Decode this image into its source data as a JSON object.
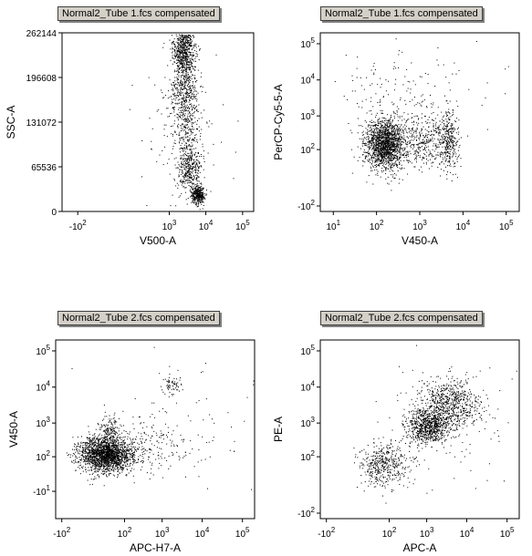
{
  "chart_data": [
    {
      "type": "scatter",
      "title": "Normal2_Tube 1.fcs compensated",
      "xlabel": "V500-A",
      "ylabel": "SSC-A",
      "x_scale": "biexponential",
      "y_scale": "linear",
      "xlim": [
        -300,
        200000
      ],
      "ylim": [
        0,
        262144
      ],
      "x_ticks": [
        "-10^2",
        "10^3",
        "10^4",
        "10^5"
      ],
      "y_ticks": [
        "0",
        "65536",
        "131072",
        "196608",
        "262144"
      ],
      "clusters": [
        {
          "x_center": 2500,
          "y_center": 240000,
          "x_spread": 0.12,
          "y_spread": 20000,
          "count": 700
        },
        {
          "x_center": 2500,
          "y_center": 175000,
          "x_spread": 0.14,
          "y_spread": 25000,
          "count": 400
        },
        {
          "x_center": 3500,
          "y_center": 110000,
          "x_spread": 0.14,
          "y_spread": 30000,
          "count": 250
        },
        {
          "x_center": 3500,
          "y_center": 60000,
          "x_spread": 0.12,
          "y_spread": 15000,
          "count": 300
        },
        {
          "x_center": 6000,
          "y_center": 25000,
          "x_spread": 0.07,
          "y_spread": 7000,
          "count": 350
        },
        {
          "x_center": 2000,
          "y_center": 130000,
          "x_spread": 0.35,
          "y_spread": 60000,
          "count": 150
        }
      ]
    },
    {
      "type": "scatter",
      "title": "Normal2_Tube 1.fcs compensated",
      "xlabel": "V450-A",
      "ylabel": "PerCP-Cy5-5-A",
      "x_scale": "log",
      "y_scale": "biexponential",
      "xlim": [
        5,
        200000
      ],
      "ylim": [
        -150,
        200000
      ],
      "x_ticks": [
        "10^1",
        "10^2",
        "10^3",
        "10^4",
        "10^5"
      ],
      "y_ticks": [
        "-10^2",
        "10^2",
        "10^3",
        "10^4",
        "10^5"
      ],
      "clusters": [
        {
          "x_center": 150,
          "y_center": 150,
          "x_spread": 0.2,
          "y_spread": 0.28,
          "count": 1600
        },
        {
          "x_center": 1200,
          "y_center": 200,
          "x_spread": 0.3,
          "y_spread": 0.3,
          "count": 400
        },
        {
          "x_center": 4500,
          "y_center": 200,
          "x_spread": 0.1,
          "y_spread": 0.35,
          "count": 300
        },
        {
          "x_center": 200,
          "y_center": 3000,
          "x_spread": 0.5,
          "y_spread": 0.5,
          "count": 120
        },
        {
          "x_center": 3000,
          "y_center": 5000,
          "x_spread": 0.6,
          "y_spread": 0.6,
          "count": 50
        }
      ]
    },
    {
      "type": "scatter",
      "title": "Normal2_Tube 2.fcs compensated",
      "xlabel": "APC-H7-A",
      "ylabel": "V450-A",
      "x_scale": "biexponential",
      "y_scale": "biexponential",
      "xlim": [
        -150,
        200000
      ],
      "ylim": [
        -150,
        200000
      ],
      "x_ticks": [
        "-10^2",
        "10^2",
        "10^3",
        "10^4",
        "10^5"
      ],
      "y_ticks": [
        "-10^1",
        "10^2",
        "10^3",
        "10^4",
        "10^5"
      ],
      "clusters": [
        {
          "x_center": 20,
          "y_center": 120,
          "x_spread": 0.26,
          "y_spread": 0.2,
          "count": 2000
        },
        {
          "x_center": 30,
          "y_center": 700,
          "x_spread": 0.1,
          "y_spread": 0.15,
          "count": 120
        },
        {
          "x_center": 300,
          "y_center": 200,
          "x_spread": 0.5,
          "y_spread": 0.3,
          "count": 250
        },
        {
          "x_center": 1800,
          "y_center": 12000,
          "x_spread": 0.1,
          "y_spread": 0.12,
          "count": 60
        },
        {
          "x_center": 5000,
          "y_center": 2000,
          "x_spread": 0.8,
          "y_spread": 0.8,
          "count": 60
        }
      ]
    },
    {
      "type": "scatter",
      "title": "Normal2_Tube 2.fcs compensated",
      "xlabel": "APC-A",
      "ylabel": "PE-A",
      "x_scale": "biexponential",
      "y_scale": "biexponential",
      "xlim": [
        -150,
        200000
      ],
      "ylim": [
        -150,
        200000
      ],
      "x_ticks": [
        "-10^2",
        "10^2",
        "10^3",
        "10^4",
        "10^5"
      ],
      "y_ticks": [
        "-10^2",
        "10^2",
        "10^3",
        "10^4",
        "10^5"
      ],
      "clusters": [
        {
          "x_center": 70,
          "y_center": 50,
          "x_spread": 0.25,
          "y_spread": 0.25,
          "count": 450
        },
        {
          "x_center": 1000,
          "y_center": 800,
          "x_spread": 0.22,
          "y_spread": 0.2,
          "count": 800
        },
        {
          "x_center": 4000,
          "y_center": 3500,
          "x_spread": 0.3,
          "y_spread": 0.28,
          "count": 700
        },
        {
          "x_center": 5000,
          "y_center": 800,
          "x_spread": 0.8,
          "y_spread": 0.8,
          "count": 80
        }
      ]
    }
  ]
}
